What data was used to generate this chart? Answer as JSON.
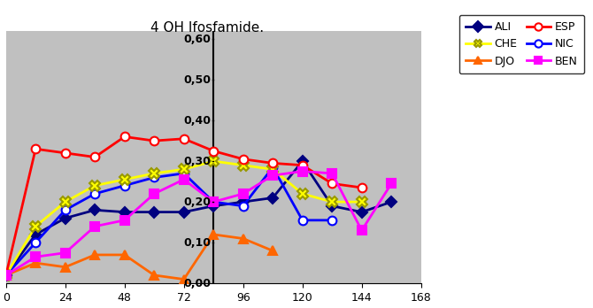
{
  "title": "4 OH Ifosfamide.",
  "background_color": "#c0c0c0",
  "xlim": [
    0,
    168
  ],
  "ylim": [
    0.0,
    0.62
  ],
  "xticks": [
    0,
    24,
    48,
    72,
    96,
    120,
    144,
    168
  ],
  "yticks": [
    0.0,
    0.1,
    0.2,
    0.3,
    0.4,
    0.5,
    0.6
  ],
  "ytick_labels": [
    "0,00",
    "0,10",
    "0,20",
    "0,30",
    "0,40",
    "0,50",
    "0,60"
  ],
  "vline_x": 84,
  "legend_order": [
    "ALI",
    "CHE",
    "DJO",
    "ESP",
    "NIC",
    "BEN"
  ],
  "series": {
    "ALI": {
      "x": [
        0,
        12,
        24,
        36,
        48,
        60,
        72,
        84,
        96,
        108,
        120,
        132,
        144,
        156
      ],
      "y": [
        0.02,
        0.12,
        0.16,
        0.18,
        0.175,
        0.175,
        0.175,
        0.19,
        0.2,
        0.21,
        0.3,
        0.19,
        0.175,
        0.2
      ],
      "color": "#000080",
      "marker": "D",
      "mfc": "#000080",
      "mec": "#000080",
      "linewidth": 2,
      "markersize": 6
    },
    "DJO": {
      "x": [
        0,
        12,
        24,
        36,
        48,
        60,
        72,
        84,
        96,
        108
      ],
      "y": [
        0.02,
        0.05,
        0.04,
        0.07,
        0.07,
        0.02,
        0.01,
        0.12,
        0.11,
        0.08
      ],
      "color": "#ff6600",
      "marker": "^",
      "mfc": "#ff6600",
      "mec": "#ff6600",
      "linewidth": 2,
      "markersize": 7
    },
    "NIC": {
      "x": [
        0,
        12,
        24,
        36,
        48,
        60,
        72,
        84,
        96,
        108,
        120,
        132
      ],
      "y": [
        0.02,
        0.1,
        0.18,
        0.22,
        0.24,
        0.26,
        0.27,
        0.2,
        0.19,
        0.285,
        0.155,
        0.155
      ],
      "color": "#0000ff",
      "marker": "o",
      "mfc": "white",
      "mec": "#0000ff",
      "linewidth": 2,
      "markersize": 7
    },
    "CHE": {
      "x": [
        0,
        12,
        24,
        36,
        48,
        60,
        72,
        84,
        96,
        108,
        120,
        132,
        144
      ],
      "y": [
        0.02,
        0.14,
        0.2,
        0.24,
        0.255,
        0.27,
        0.28,
        0.3,
        0.29,
        0.28,
        0.22,
        0.2,
        0.2
      ],
      "color": "#ffff00",
      "marker": "X",
      "mfc": "#ffff00",
      "mec": "#999900",
      "linewidth": 2,
      "markersize": 8
    },
    "ESP": {
      "x": [
        0,
        12,
        24,
        36,
        48,
        60,
        72,
        84,
        96,
        108,
        120,
        132,
        144
      ],
      "y": [
        0.02,
        0.33,
        0.32,
        0.31,
        0.36,
        0.35,
        0.355,
        0.325,
        0.305,
        0.295,
        0.29,
        0.245,
        0.235
      ],
      "color": "#ff0000",
      "marker": "o",
      "mfc": "white",
      "mec": "#ff0000",
      "linewidth": 2,
      "markersize": 7
    },
    "BEN": {
      "x": [
        0,
        12,
        24,
        36,
        48,
        60,
        72,
        84,
        96,
        108,
        120,
        132,
        144,
        156
      ],
      "y": [
        0.02,
        0.065,
        0.075,
        0.14,
        0.155,
        0.22,
        0.255,
        0.2,
        0.22,
        0.265,
        0.275,
        0.27,
        0.13,
        0.245
      ],
      "color": "#ff00ff",
      "marker": "s",
      "mfc": "#ff00ff",
      "mec": "#ff00ff",
      "linewidth": 2,
      "markersize": 7
    }
  }
}
